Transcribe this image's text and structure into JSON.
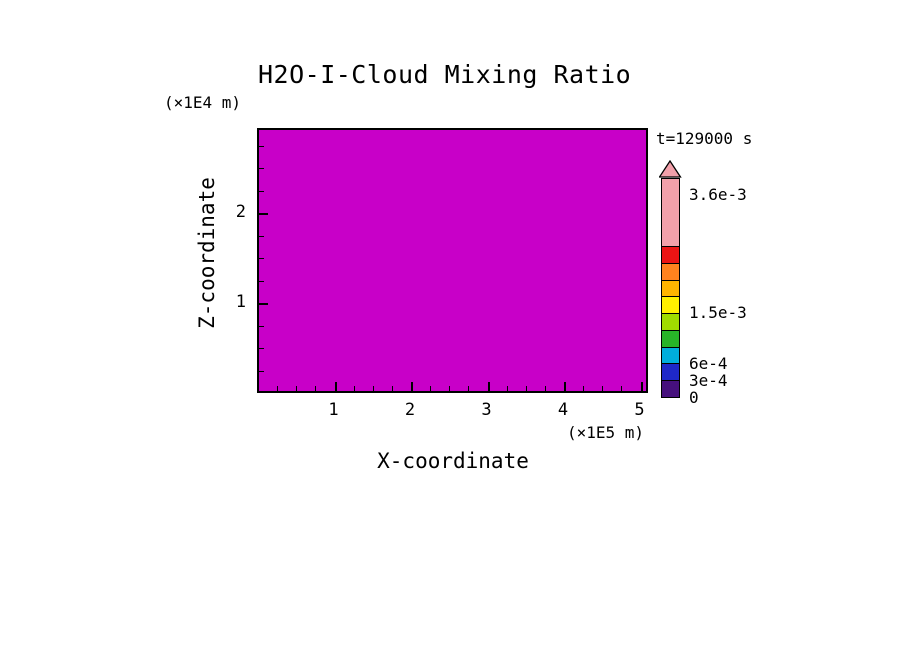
{
  "title": "H2O-I-Cloud Mixing Ratio",
  "time_label": "t=129000 s",
  "axes": {
    "y_unit": "(×1E4 m)",
    "x_unit": "(×1E5 m)",
    "x_label": "X-coordinate",
    "y_label": "Z-coordinate",
    "x_max": 5.11,
    "y_max": 2.94,
    "x_minor_step": 0.25,
    "y_minor_step": 0.25,
    "x_ticks": [
      {
        "value": 1,
        "label": "1"
      },
      {
        "value": 2,
        "label": "2"
      },
      {
        "value": 3,
        "label": "3"
      },
      {
        "value": 4,
        "label": "4"
      },
      {
        "value": 5,
        "label": "5"
      }
    ],
    "y_ticks": [
      {
        "value": 2,
        "label": "2"
      },
      {
        "value": 1,
        "label": "1"
      }
    ]
  },
  "colorbar": {
    "vmax": 0.0039,
    "arrow_color": "#F2A0AA",
    "segments": [
      {
        "from": 0.0,
        "to": 0.0003,
        "color": "#46107D"
      },
      {
        "from": 0.0003,
        "to": 0.0006,
        "color": "#1E28C8"
      },
      {
        "from": 0.0006,
        "to": 0.0009,
        "color": "#00AEDC"
      },
      {
        "from": 0.0009,
        "to": 0.0012,
        "color": "#28B428"
      },
      {
        "from": 0.0012,
        "to": 0.0015,
        "color": "#A0DC00"
      },
      {
        "from": 0.0015,
        "to": 0.0018,
        "color": "#FFF000"
      },
      {
        "from": 0.0018,
        "to": 0.0021,
        "color": "#FFB400"
      },
      {
        "from": 0.0021,
        "to": 0.0024,
        "color": "#FF821E"
      },
      {
        "from": 0.0024,
        "to": 0.0027,
        "color": "#EB1414"
      },
      {
        "from": 0.0027,
        "to": 0.0039,
        "color": "#F2A0AA"
      }
    ],
    "labels": [
      {
        "value": 0.0036,
        "text": "3.6e-3"
      },
      {
        "value": 0.0015,
        "text": "1.5e-3"
      },
      {
        "value": 0.0006,
        "text": "6e-4"
      },
      {
        "value": 0.0003,
        "text": "3e-4"
      },
      {
        "value": 0.0,
        "text": "0"
      }
    ]
  },
  "chart_data": {
    "type": "heatmap",
    "title": "H2O-I-Cloud Mixing Ratio",
    "xlabel": "X-coordinate (×1E5 m)",
    "ylabel": "Z-coordinate (×1E4 m)",
    "x_range": [
      0,
      5.11
    ],
    "y_range": [
      0,
      2.94
    ],
    "x_ticks": [
      1,
      2,
      3,
      4,
      5
    ],
    "y_ticks": [
      1,
      2
    ],
    "time_annotation": "t=129000 s",
    "field": "uniform",
    "field_color": "#C800C8",
    "description": "Entire model domain rendered as one uniform magenta fill; the H2O-I cloud mixing ratio field shows no contoured structure at t=129000 s.",
    "colorbar_levels": [
      0,
      0.0003,
      0.0006,
      0.0015,
      0.0036
    ],
    "colorbar_label_texts": [
      "0",
      "3e-4",
      "6e-4",
      "1.5e-3",
      "3.6e-3"
    ],
    "legend_position": "right",
    "grid": false
  }
}
